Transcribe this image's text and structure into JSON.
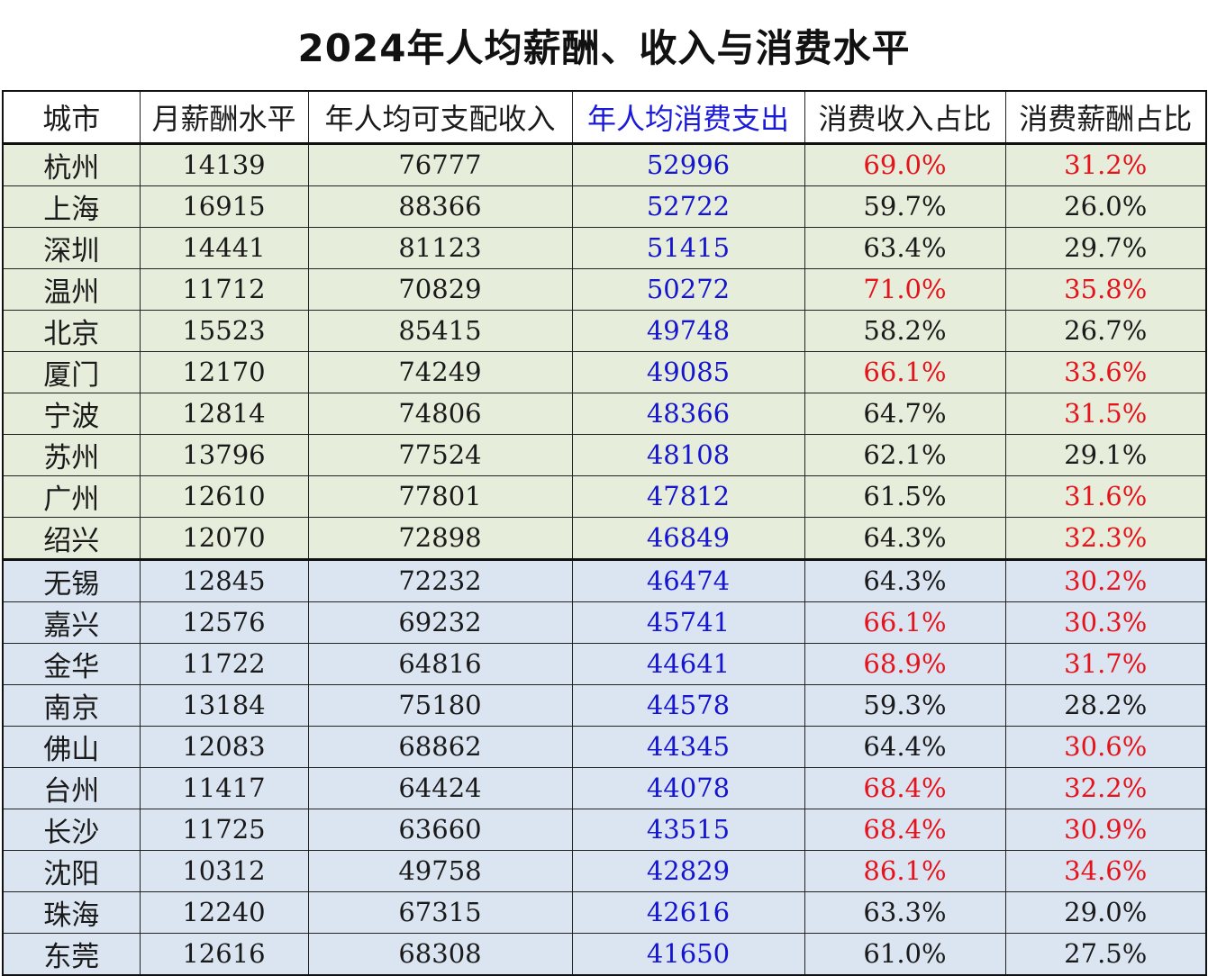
{
  "title": "2024年人均薪酬、收入与消费水平",
  "colors": {
    "consumption_blue": "#1515d0",
    "highlight_red": "#e5131c",
    "group1_bg": "#e6eedb",
    "group2_bg": "#dbe5f1"
  },
  "chart_data": {
    "type": "table",
    "title": "2024年人均薪酬、收入与消费水平",
    "columns": [
      "城市",
      "月薪酬水平",
      "年人均可支配收入",
      "年人均消费支出",
      "消费收入占比",
      "消费薪酬占比"
    ],
    "rows": [
      {
        "city": "杭州",
        "salary": "14139",
        "income": "76777",
        "consumption": "52996",
        "ratio_income": "69.0%",
        "ratio_income_red": true,
        "ratio_salary": "31.2%",
        "ratio_salary_red": true
      },
      {
        "city": "上海",
        "salary": "16915",
        "income": "88366",
        "consumption": "52722",
        "ratio_income": "59.7%",
        "ratio_income_red": false,
        "ratio_salary": "26.0%",
        "ratio_salary_red": false
      },
      {
        "city": "深圳",
        "salary": "14441",
        "income": "81123",
        "consumption": "51415",
        "ratio_income": "63.4%",
        "ratio_income_red": false,
        "ratio_salary": "29.7%",
        "ratio_salary_red": false
      },
      {
        "city": "温州",
        "salary": "11712",
        "income": "70829",
        "consumption": "50272",
        "ratio_income": "71.0%",
        "ratio_income_red": true,
        "ratio_salary": "35.8%",
        "ratio_salary_red": true
      },
      {
        "city": "北京",
        "salary": "15523",
        "income": "85415",
        "consumption": "49748",
        "ratio_income": "58.2%",
        "ratio_income_red": false,
        "ratio_salary": "26.7%",
        "ratio_salary_red": false
      },
      {
        "city": "厦门",
        "salary": "12170",
        "income": "74249",
        "consumption": "49085",
        "ratio_income": "66.1%",
        "ratio_income_red": true,
        "ratio_salary": "33.6%",
        "ratio_salary_red": true
      },
      {
        "city": "宁波",
        "salary": "12814",
        "income": "74806",
        "consumption": "48366",
        "ratio_income": "64.7%",
        "ratio_income_red": false,
        "ratio_salary": "31.5%",
        "ratio_salary_red": true
      },
      {
        "city": "苏州",
        "salary": "13796",
        "income": "77524",
        "consumption": "48108",
        "ratio_income": "62.1%",
        "ratio_income_red": false,
        "ratio_salary": "29.1%",
        "ratio_salary_red": false
      },
      {
        "city": "广州",
        "salary": "12610",
        "income": "77801",
        "consumption": "47812",
        "ratio_income": "61.5%",
        "ratio_income_red": false,
        "ratio_salary": "31.6%",
        "ratio_salary_red": true
      },
      {
        "city": "绍兴",
        "salary": "12070",
        "income": "72898",
        "consumption": "46849",
        "ratio_income": "64.3%",
        "ratio_income_red": false,
        "ratio_salary": "32.3%",
        "ratio_salary_red": true
      },
      {
        "city": "无锡",
        "salary": "12845",
        "income": "72232",
        "consumption": "46474",
        "ratio_income": "64.3%",
        "ratio_income_red": false,
        "ratio_salary": "30.2%",
        "ratio_salary_red": true
      },
      {
        "city": "嘉兴",
        "salary": "12576",
        "income": "69232",
        "consumption": "45741",
        "ratio_income": "66.1%",
        "ratio_income_red": true,
        "ratio_salary": "30.3%",
        "ratio_salary_red": true
      },
      {
        "city": "金华",
        "salary": "11722",
        "income": "64816",
        "consumption": "44641",
        "ratio_income": "68.9%",
        "ratio_income_red": true,
        "ratio_salary": "31.7%",
        "ratio_salary_red": true
      },
      {
        "city": "南京",
        "salary": "13184",
        "income": "75180",
        "consumption": "44578",
        "ratio_income": "59.3%",
        "ratio_income_red": false,
        "ratio_salary": "28.2%",
        "ratio_salary_red": false
      },
      {
        "city": "佛山",
        "salary": "12083",
        "income": "68862",
        "consumption": "44345",
        "ratio_income": "64.4%",
        "ratio_income_red": false,
        "ratio_salary": "30.6%",
        "ratio_salary_red": true
      },
      {
        "city": "台州",
        "salary": "11417",
        "income": "64424",
        "consumption": "44078",
        "ratio_income": "68.4%",
        "ratio_income_red": true,
        "ratio_salary": "32.2%",
        "ratio_salary_red": true
      },
      {
        "city": "长沙",
        "salary": "11725",
        "income": "63660",
        "consumption": "43515",
        "ratio_income": "68.4%",
        "ratio_income_red": true,
        "ratio_salary": "30.9%",
        "ratio_salary_red": true
      },
      {
        "city": "沈阳",
        "salary": "10312",
        "income": "49758",
        "consumption": "42829",
        "ratio_income": "86.1%",
        "ratio_income_red": true,
        "ratio_salary": "34.6%",
        "ratio_salary_red": true
      },
      {
        "city": "珠海",
        "salary": "12240",
        "income": "67315",
        "consumption": "42616",
        "ratio_income": "63.3%",
        "ratio_income_red": false,
        "ratio_salary": "29.0%",
        "ratio_salary_red": false
      },
      {
        "city": "东莞",
        "salary": "12616",
        "income": "68308",
        "consumption": "41650",
        "ratio_income": "61.0%",
        "ratio_income_red": false,
        "ratio_salary": "27.5%",
        "ratio_salary_red": false
      }
    ]
  }
}
